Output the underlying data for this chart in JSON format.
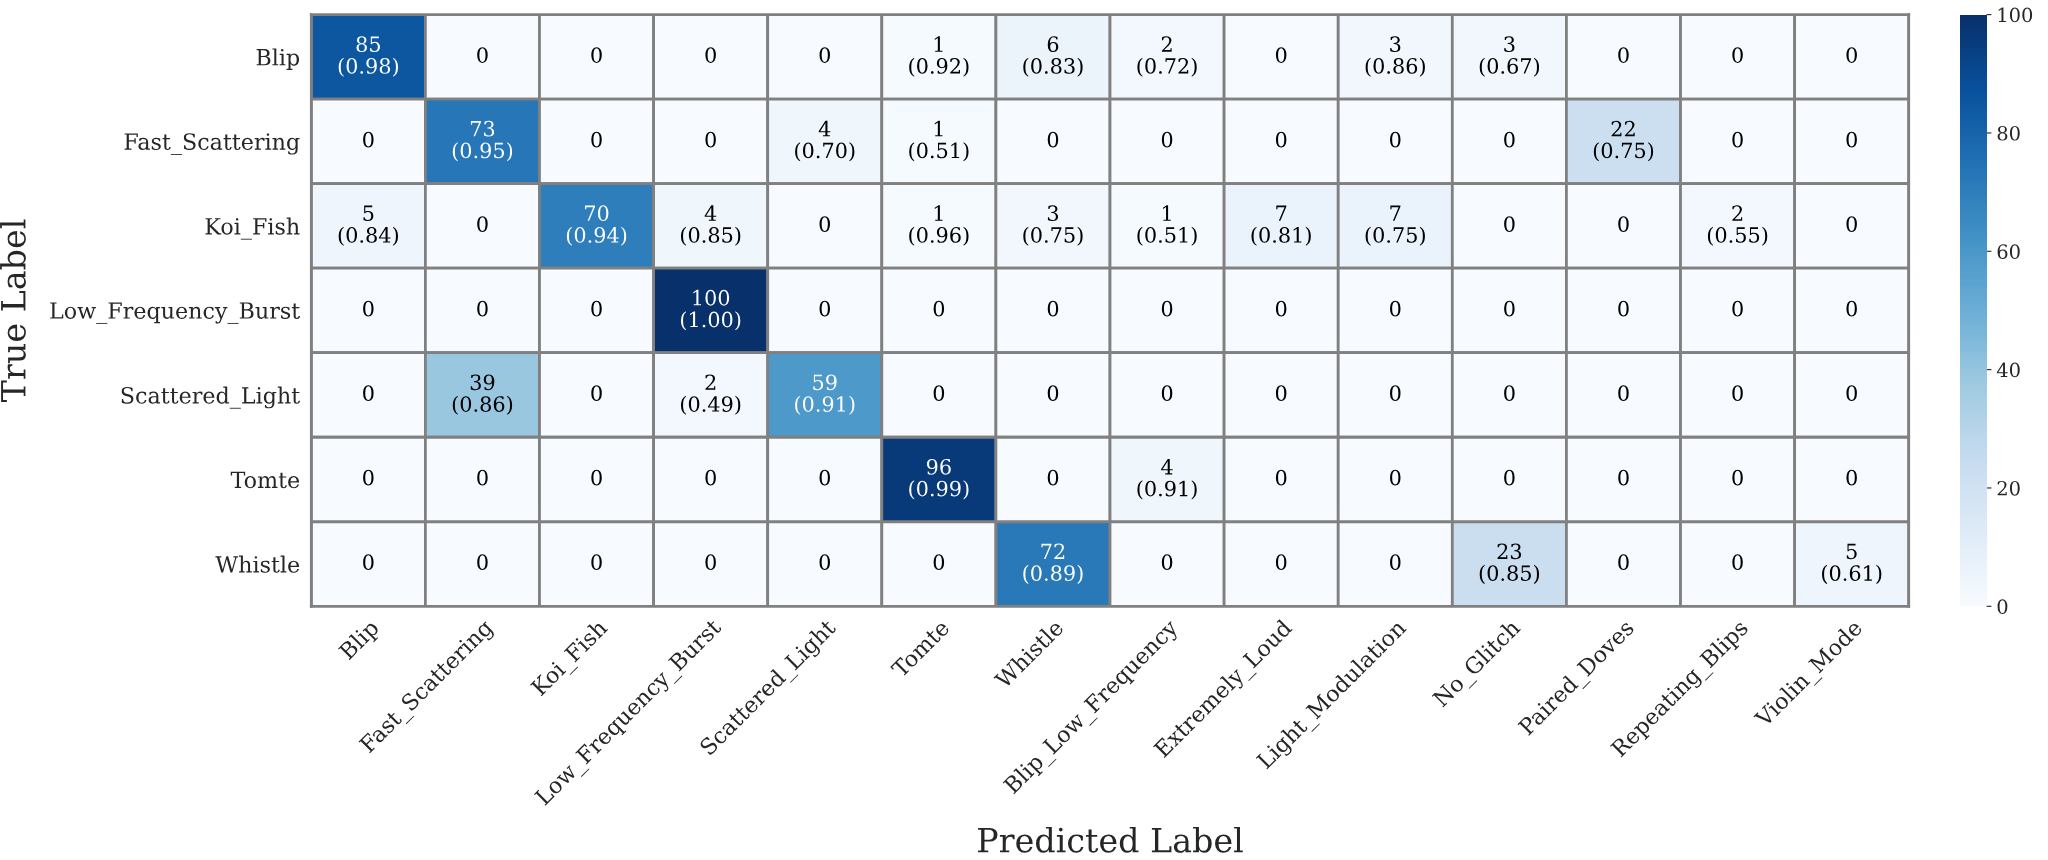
{
  "chart_data": {
    "type": "heatmap",
    "xlabel": "Predicted Label",
    "ylabel": "True Label",
    "categories": [
      "Blip",
      "Fast_Scattering",
      "Koi_Fish",
      "Low_Frequency_Burst",
      "Scattered_Light",
      "Tomte",
      "Whistle",
      "Blip_Low_Frequency",
      "Extremely_Loud",
      "Light_Modulation",
      "No_Glitch",
      "Paired_Doves",
      "Repeating_Blips",
      "Violin_Mode"
    ],
    "y_categories": [
      "Blip",
      "Fast_Scattering",
      "Koi_Fish",
      "Low_Frequency_Burst",
      "Scattered_Light",
      "Tomte",
      "Whistle"
    ],
    "cells": [
      [
        85,
        0,
        0,
        0,
        0,
        1,
        6,
        2,
        0,
        3,
        3,
        0,
        0,
        0
      ],
      [
        0,
        73,
        0,
        0,
        4,
        1,
        0,
        0,
        0,
        0,
        0,
        22,
        0,
        0
      ],
      [
        5,
        0,
        70,
        4,
        0,
        1,
        3,
        1,
        7,
        7,
        0,
        0,
        2,
        0
      ],
      [
        0,
        0,
        0,
        100,
        0,
        0,
        0,
        0,
        0,
        0,
        0,
        0,
        0,
        0
      ],
      [
        0,
        39,
        0,
        2,
        59,
        0,
        0,
        0,
        0,
        0,
        0,
        0,
        0,
        0
      ],
      [
        0,
        0,
        0,
        0,
        0,
        96,
        0,
        4,
        0,
        0,
        0,
        0,
        0,
        0
      ],
      [
        0,
        0,
        0,
        0,
        0,
        0,
        72,
        0,
        0,
        0,
        23,
        0,
        0,
        5
      ]
    ],
    "cell_labels": [
      [
        "85\n(0.98)",
        "0",
        "0",
        "0",
        "0",
        "1\n(0.92)",
        "6\n(0.83)",
        "2\n(0.72)",
        "0",
        "3\n(0.86)",
        "3\n(0.67)",
        "0",
        "0",
        "0"
      ],
      [
        "0",
        "73\n(0.95)",
        "0",
        "0",
        "4\n(0.70)",
        "1\n(0.51)",
        "0",
        "0",
        "0",
        "0",
        "0",
        "22\n(0.75)",
        "0",
        "0"
      ],
      [
        "5\n(0.84)",
        "0",
        "70\n(0.94)",
        "4\n(0.85)",
        "0",
        "1\n(0.96)",
        "3\n(0.75)",
        "1\n(0.51)",
        "7\n(0.81)",
        "7\n(0.75)",
        "0",
        "0",
        "2\n(0.55)",
        "0"
      ],
      [
        "0",
        "0",
        "0",
        "100\n(1.00)",
        "0",
        "0",
        "0",
        "0",
        "0",
        "0",
        "0",
        "0",
        "0",
        "0"
      ],
      [
        "0",
        "39\n(0.86)",
        "0",
        "2\n(0.49)",
        "59\n(0.91)",
        "0",
        "0",
        "0",
        "0",
        "0",
        "0",
        "0",
        "0",
        "0"
      ],
      [
        "0",
        "0",
        "0",
        "0",
        "0",
        "96\n(0.99)",
        "0",
        "4\n(0.91)",
        "0",
        "0",
        "0",
        "0",
        "0",
        "0"
      ],
      [
        "0",
        "0",
        "0",
        "0",
        "0",
        "0",
        "72\n(0.89)",
        "0",
        "0",
        "0",
        "23\n(0.85)",
        "0",
        "0",
        "5\n(0.61)"
      ]
    ],
    "clim": [
      0,
      100
    ],
    "cticks": [
      0,
      20,
      40,
      60,
      80,
      100
    ]
  }
}
